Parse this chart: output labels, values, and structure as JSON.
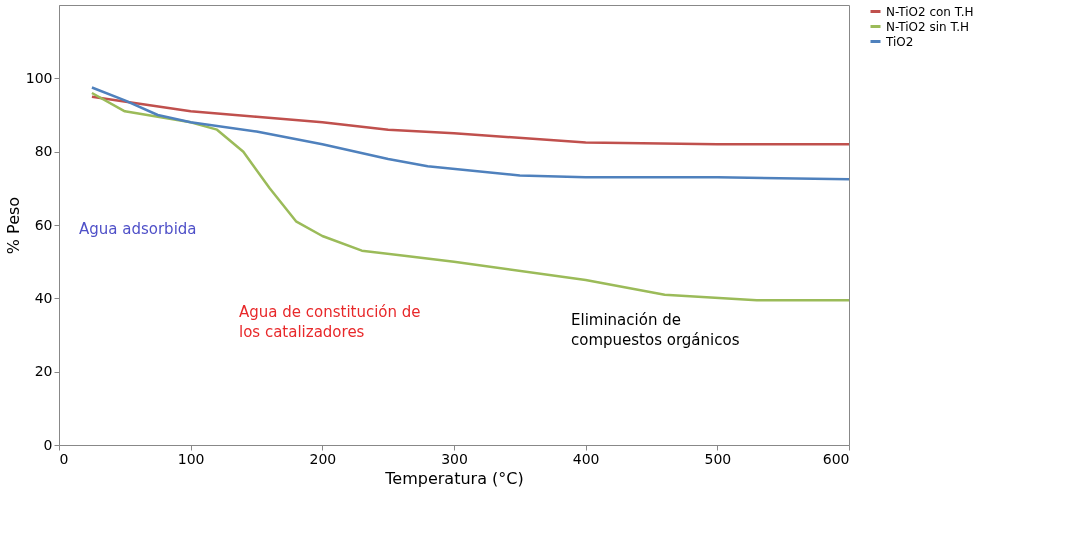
{
  "chart_data": {
    "type": "line",
    "xlabel": "Temperatura (°C)",
    "ylabel": "% Peso",
    "xlim": [
      0,
      600
    ],
    "ylim": [
      0,
      120
    ],
    "xticks": [
      0,
      100,
      200,
      300,
      400,
      500,
      600
    ],
    "yticks": [
      0,
      20,
      40,
      60,
      80,
      100
    ],
    "grid": false,
    "legend": "right",
    "marker": "none",
    "line_style": "solid",
    "series": [
      {
        "name": "N-TiO2 con T.H",
        "color": "#c0504d",
        "x": [
          25,
          100,
          150,
          200,
          250,
          300,
          400,
          500,
          600
        ],
        "values": [
          95,
          91,
          89.5,
          88,
          86,
          85,
          82.5,
          82,
          82
        ]
      },
      {
        "name": "N-TiO2 sin T.H",
        "color": "#9bbb59",
        "x": [
          25,
          50,
          100,
          120,
          140,
          160,
          180,
          200,
          230,
          300,
          400,
          460,
          530,
          600
        ],
        "values": [
          96,
          91,
          88,
          86,
          80,
          70,
          61,
          57,
          53,
          50,
          45,
          41,
          39.5,
          39.5
        ]
      },
      {
        "name": "TiO2",
        "color": "#4f81bd",
        "x": [
          25,
          50,
          75,
          100,
          150,
          200,
          250,
          280,
          350,
          400,
          500,
          600
        ],
        "values": [
          97.5,
          94,
          90,
          88,
          85.5,
          82,
          78,
          76,
          73.5,
          73,
          73,
          72.5
        ]
      }
    ],
    "annotations": [
      "Agua adsorbida",
      "Agua de constitución de\nlos catalizadores",
      "Eliminación de\ncompuestos orgánicos"
    ]
  }
}
